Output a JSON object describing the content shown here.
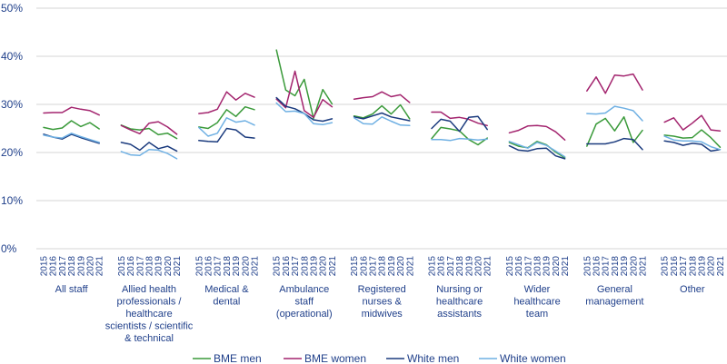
{
  "chart_data": {
    "type": "line",
    "y_axis": {
      "min": 0,
      "max": 50,
      "ticks": [
        0,
        10,
        20,
        30,
        40,
        50
      ],
      "tick_labels": [
        "0%",
        "10%",
        "20%",
        "30%",
        "40%",
        "50%"
      ]
    },
    "grid": true,
    "years": [
      "2015",
      "2016",
      "2017",
      "2018",
      "2019",
      "2020",
      "2021"
    ],
    "legend_position": "bottom",
    "series": [
      {
        "name": "BME men",
        "color": "#3a9a3a"
      },
      {
        "name": "BME women",
        "color": "#a3246e"
      },
      {
        "name": "White men",
        "color": "#1b3b7e"
      },
      {
        "name": "White women",
        "color": "#6fb0e3"
      }
    ],
    "groups": [
      {
        "label": [
          "All staff"
        ],
        "values": [
          [
            25.2,
            24.8,
            25.1,
            26.6,
            25.4,
            26.2,
            24.9
          ],
          [
            28.2,
            28.3,
            28.3,
            29.4,
            29.0,
            28.7,
            27.8
          ],
          [
            23.8,
            23.2,
            22.8,
            23.8,
            23.1,
            22.5,
            21.9
          ],
          [
            23.6,
            23.2,
            23.0,
            24.0,
            23.3,
            22.7,
            22.1
          ]
        ]
      },
      {
        "label": [
          "Allied health",
          "professionals /",
          "healthcare",
          "scientists / scientific",
          "& technical"
        ],
        "values": [
          [
            25.7,
            24.9,
            24.7,
            25.0,
            23.7,
            24.0,
            22.9
          ],
          [
            25.6,
            24.7,
            23.9,
            26.1,
            26.4,
            25.3,
            23.8
          ],
          [
            22.1,
            21.7,
            20.5,
            22.1,
            20.8,
            21.3,
            20.3
          ],
          [
            20.2,
            19.5,
            19.4,
            20.6,
            20.5,
            19.8,
            18.7
          ]
        ]
      },
      {
        "label": [
          "Medical &",
          "dental"
        ],
        "values": [
          [
            25.3,
            25.0,
            26.2,
            28.9,
            27.5,
            29.5,
            28.9
          ],
          [
            28.1,
            28.3,
            29.0,
            32.6,
            30.9,
            32.3,
            31.5
          ],
          [
            22.5,
            22.3,
            22.2,
            25.0,
            24.7,
            23.2,
            23.0
          ],
          [
            25.2,
            23.4,
            24.0,
            27.2,
            26.3,
            26.6,
            25.7
          ]
        ]
      },
      {
        "label": [
          "Ambulance",
          "staff",
          "(operational)"
        ],
        "values": [
          [
            41.3,
            33.0,
            31.8,
            35.2,
            27.1,
            33.1,
            30.1
          ],
          [
            31.1,
            29.3,
            36.9,
            28.7,
            27.3,
            31.0,
            29.5
          ],
          [
            31.4,
            29.6,
            29.1,
            28.1,
            26.8,
            26.5,
            27.0
          ],
          [
            30.3,
            28.5,
            28.6,
            28.1,
            26.0,
            25.8,
            26.2
          ]
        ]
      },
      {
        "label": [
          "Registered",
          "nurses &",
          "midwives"
        ],
        "values": [
          [
            27.6,
            27.2,
            28.0,
            29.7,
            28.0,
            29.9,
            27.0
          ],
          [
            31.1,
            31.4,
            31.6,
            32.6,
            31.6,
            32.0,
            30.4
          ],
          [
            27.4,
            27.0,
            27.6,
            28.2,
            27.4,
            27.0,
            26.6
          ],
          [
            27.2,
            26.0,
            25.9,
            27.4,
            26.5,
            25.7,
            25.6
          ]
        ]
      },
      {
        "label": [
          "Nursing or",
          "healthcare",
          "assistants"
        ],
        "values": [
          [
            22.9,
            25.2,
            24.9,
            24.5,
            22.7,
            21.6,
            23.0
          ],
          [
            28.4,
            28.4,
            27.1,
            27.3,
            26.9,
            26.1,
            25.6
          ],
          [
            25.0,
            26.9,
            26.5,
            24.4,
            27.3,
            27.5,
            24.8
          ],
          [
            22.7,
            22.7,
            22.5,
            22.9,
            22.8,
            22.6,
            22.8
          ]
        ]
      },
      {
        "label": [
          "Wider",
          "healthcare",
          "team"
        ],
        "values": [
          [
            22.1,
            21.3,
            21.0,
            22.3,
            21.6,
            20.1,
            18.9
          ],
          [
            24.1,
            24.6,
            25.5,
            25.6,
            25.4,
            24.3,
            22.6
          ],
          [
            21.4,
            20.5,
            20.3,
            20.8,
            20.9,
            19.3,
            18.7
          ],
          [
            22.3,
            21.6,
            20.9,
            22.1,
            21.5,
            20.3,
            19.1
          ]
        ]
      },
      {
        "label": [
          "General",
          "management"
        ],
        "values": [
          [
            21.3,
            25.9,
            27.1,
            24.5,
            27.4,
            22.1,
            24.6
          ],
          [
            32.8,
            35.7,
            32.3,
            36.1,
            35.9,
            36.3,
            33.0
          ],
          [
            21.8,
            21.8,
            21.8,
            22.2,
            22.9,
            22.7,
            20.6
          ],
          [
            28.1,
            28.0,
            28.2,
            29.6,
            29.2,
            28.7,
            26.6
          ]
        ]
      },
      {
        "label": [
          "Other"
        ],
        "values": [
          [
            23.6,
            23.4,
            23.0,
            23.1,
            24.7,
            23.1,
            21.1
          ],
          [
            26.3,
            27.2,
            24.7,
            26.1,
            27.7,
            24.7,
            24.5
          ],
          [
            22.4,
            22.1,
            21.5,
            21.9,
            21.7,
            20.3,
            20.6
          ],
          [
            23.4,
            22.6,
            22.4,
            22.4,
            22.2,
            21.2,
            20.6
          ]
        ]
      }
    ]
  }
}
